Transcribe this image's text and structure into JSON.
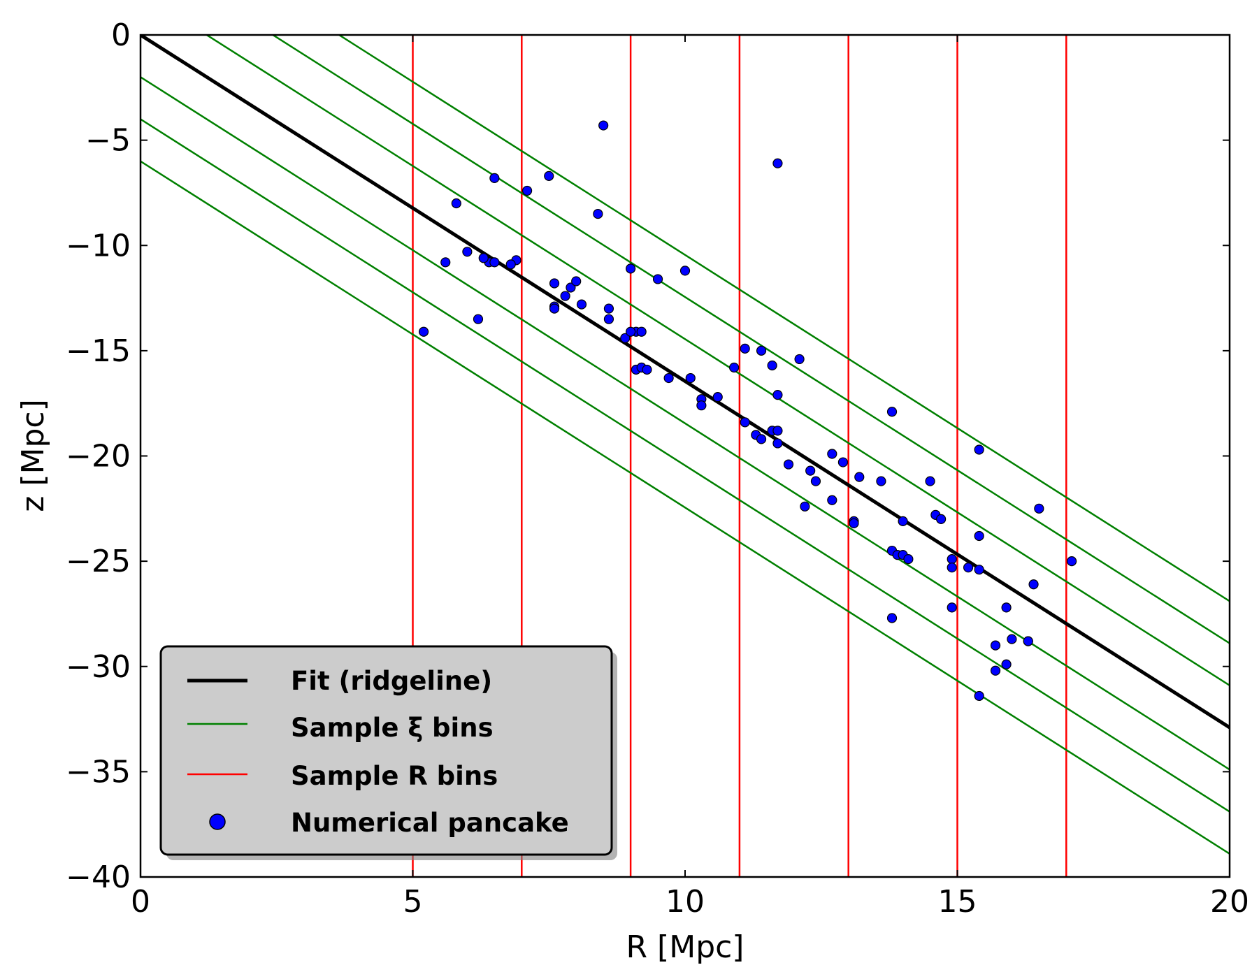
{
  "chart_data": {
    "type": "scatter",
    "title": "",
    "xlabel": "R [Mpc]",
    "ylabel": "z [Mpc]",
    "xlim": [
      0,
      20
    ],
    "ylim": [
      -40,
      0
    ],
    "xticks": [
      0,
      5,
      10,
      15,
      20
    ],
    "xtick_labels": [
      "0",
      "5",
      "10",
      "15",
      "20"
    ],
    "yticks": [
      0,
      -5,
      -10,
      -15,
      -20,
      -25,
      -30,
      -35,
      -40
    ],
    "ytick_labels": [
      "0",
      "−5",
      "−10",
      "−15",
      "−20",
      "−25",
      "−30",
      "−35",
      "−40"
    ],
    "grid": false,
    "legend_position": "lower-left",
    "colors": {
      "fit": "#000000",
      "xi_bins": "#008000",
      "r_bins": "#ff0000",
      "points": "#0000ff",
      "legend_bg": "#cccccc"
    },
    "fit_line": {
      "name": "Fit (ridgeline)",
      "slope": -1.645,
      "intercept": 0
    },
    "xi_bins": {
      "name": "Sample ξ bins",
      "slope": -1.645,
      "intercepts": [
        6,
        4,
        2,
        -2,
        -4,
        -6
      ]
    },
    "r_bins": {
      "name": "Sample R bins",
      "x": [
        5,
        7,
        9,
        11,
        13,
        15,
        17
      ]
    },
    "points": {
      "name": "Numerical pancake",
      "x": [
        8.5,
        11.7,
        7.5,
        6.5,
        7.1,
        8.4,
        5.8,
        5.6,
        6.0,
        6.4,
        6.5,
        6.9,
        6.8,
        6.3,
        6.2,
        5.2,
        7.6,
        7.6,
        7.9,
        7.8,
        8.0,
        8.1,
        7.6,
        8.6,
        8.6,
        9.0,
        9.1,
        10.0,
        9.5,
        8.9,
        9.0,
        9.2,
        9.1,
        9.2,
        9.2,
        9.3,
        9.7,
        10.1,
        10.3,
        10.3,
        10.6,
        10.9,
        11.1,
        11.1,
        11.4,
        11.6,
        11.7,
        12.1,
        11.3,
        11.4,
        11.6,
        11.7,
        11.7,
        11.9,
        12.3,
        12.4,
        12.2,
        12.7,
        12.9,
        12.7,
        13.2,
        13.1,
        13.1,
        13.6,
        13.8,
        14.0,
        14.5,
        14.6,
        14.7,
        13.8,
        13.9,
        14.0,
        14.1,
        13.8,
        14.9,
        14.9,
        14.9,
        15.2,
        15.4,
        15.4,
        15.4,
        15.4,
        16.5,
        16.4,
        16.3,
        17.1,
        15.9,
        16.0,
        15.9,
        15.7,
        15.7,
        16.3
      ],
      "y": [
        -4.3,
        -6.1,
        -6.7,
        -6.8,
        -7.4,
        -8.5,
        -8.0,
        -10.8,
        -10.3,
        -10.8,
        -10.8,
        -10.7,
        -10.9,
        -10.6,
        -13.5,
        -14.1,
        -11.8,
        -12.9,
        -12.0,
        -12.4,
        -11.7,
        -12.8,
        -13.0,
        -13.0,
        -13.5,
        -11.1,
        -14.1,
        -11.2,
        -11.6,
        -14.4,
        -14.1,
        -15.8,
        -15.9,
        -15.8,
        -14.1,
        -15.9,
        -16.3,
        -16.3,
        -17.3,
        -17.6,
        -17.2,
        -15.8,
        -14.9,
        -18.4,
        -15.0,
        -15.7,
        -17.1,
        -15.4,
        -19.0,
        -19.2,
        -18.8,
        -18.8,
        -19.4,
        -20.4,
        -20.7,
        -21.2,
        -22.4,
        -19.9,
        -20.3,
        -22.1,
        -21.0,
        -23.1,
        -23.2,
        -21.2,
        -17.9,
        -23.1,
        -21.2,
        -22.8,
        -23.0,
        -24.5,
        -24.7,
        -24.7,
        -24.9,
        -27.7,
        -24.9,
        -25.3,
        -27.2,
        -25.3,
        -25.4,
        -19.7,
        -23.8,
        -31.4,
        -22.5,
        -26.1,
        -28.8,
        -25.0,
        -27.2,
        -28.7,
        -29.9,
        -29.0,
        -30.2,
        -28.8
      ]
    }
  }
}
